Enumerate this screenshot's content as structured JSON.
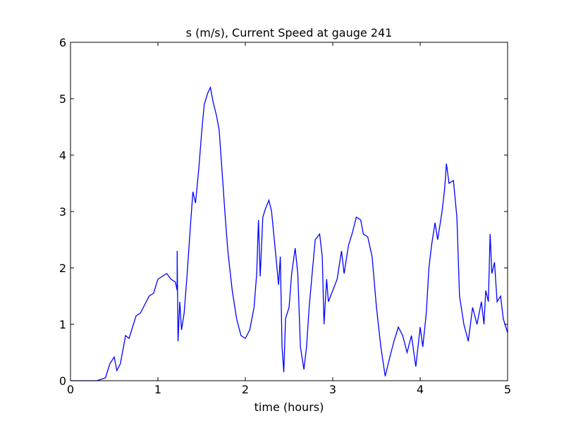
{
  "chart_data": {
    "type": "line",
    "title": "s (m/s), Current Speed at gauge 241",
    "xlabel": "time (hours)",
    "xlim": [
      0,
      5
    ],
    "xticks": [
      0,
      1,
      2,
      3,
      4,
      5
    ],
    "ylim": [
      0,
      6
    ],
    "yticks": [
      0,
      1,
      2,
      3,
      4,
      5,
      6
    ],
    "grid": false,
    "hlines": [
      {
        "y": 0,
        "color": "#000000",
        "style": "dashed"
      }
    ],
    "series": [
      {
        "color": "#0000ff",
        "x": [
          0,
          0.3,
          0.4,
          0.45,
          0.5,
          0.53,
          0.57,
          0.6,
          0.63,
          0.67,
          0.7,
          0.75,
          0.8,
          0.85,
          0.9,
          0.95,
          1.0,
          1.05,
          1.1,
          1.15,
          1.2,
          1.22,
          1.22,
          1.23,
          1.25,
          1.27,
          1.3,
          1.33,
          1.37,
          1.4,
          1.43,
          1.47,
          1.5,
          1.53,
          1.57,
          1.6,
          1.63,
          1.67,
          1.7,
          1.73,
          1.77,
          1.8,
          1.85,
          1.9,
          1.95,
          2.0,
          2.05,
          2.1,
          2.13,
          2.15,
          2.17,
          2.2,
          2.23,
          2.27,
          2.3,
          2.35,
          2.38,
          2.4,
          2.42,
          2.44,
          2.46,
          2.5,
          2.53,
          2.57,
          2.6,
          2.63,
          2.67,
          2.7,
          2.73,
          2.77,
          2.8,
          2.85,
          2.88,
          2.9,
          2.93,
          2.95,
          3.0,
          3.05,
          3.1,
          3.13,
          3.18,
          3.22,
          3.27,
          3.32,
          3.35,
          3.4,
          3.45,
          3.5,
          3.55,
          3.6,
          3.65,
          3.7,
          3.75,
          3.8,
          3.85,
          3.9,
          3.95,
          4.0,
          4.03,
          4.07,
          4.1,
          4.13,
          4.17,
          4.2,
          4.25,
          4.28,
          4.3,
          4.33,
          4.38,
          4.42,
          4.45,
          4.5,
          4.55,
          4.6,
          4.65,
          4.7,
          4.73,
          4.75,
          4.78,
          4.8,
          4.82,
          4.85,
          4.88,
          4.92,
          4.95,
          5.0
        ],
        "values": [
          0,
          0,
          0.05,
          0.3,
          0.42,
          0.18,
          0.3,
          0.55,
          0.8,
          0.75,
          0.9,
          1.15,
          1.2,
          1.35,
          1.5,
          1.55,
          1.8,
          1.85,
          1.9,
          1.8,
          1.75,
          1.6,
          2.3,
          0.7,
          1.4,
          0.9,
          1.2,
          1.8,
          2.7,
          3.35,
          3.15,
          3.8,
          4.4,
          4.9,
          5.1,
          5.2,
          4.95,
          4.7,
          4.45,
          3.8,
          2.9,
          2.3,
          1.6,
          1.1,
          0.8,
          0.75,
          0.9,
          1.3,
          1.9,
          2.85,
          1.85,
          2.9,
          3.05,
          3.2,
          3.0,
          2.2,
          1.7,
          2.2,
          0.6,
          0.15,
          1.1,
          1.3,
          1.9,
          2.35,
          1.9,
          0.6,
          0.2,
          0.6,
          1.3,
          2.0,
          2.5,
          2.6,
          2.2,
          1.0,
          1.8,
          1.4,
          1.6,
          1.8,
          2.3,
          1.9,
          2.4,
          2.6,
          2.9,
          2.85,
          2.6,
          2.55,
          2.2,
          1.3,
          0.6,
          0.08,
          0.4,
          0.7,
          0.95,
          0.8,
          0.5,
          0.8,
          0.25,
          0.95,
          0.6,
          1.2,
          2.0,
          2.4,
          2.8,
          2.5,
          3.0,
          3.4,
          3.85,
          3.5,
          3.55,
          2.9,
          1.5,
          1.0,
          0.7,
          1.3,
          1.0,
          1.4,
          1.0,
          1.6,
          1.4,
          2.6,
          1.9,
          2.1,
          1.4,
          1.5,
          1.1,
          0.85
        ]
      }
    ]
  }
}
